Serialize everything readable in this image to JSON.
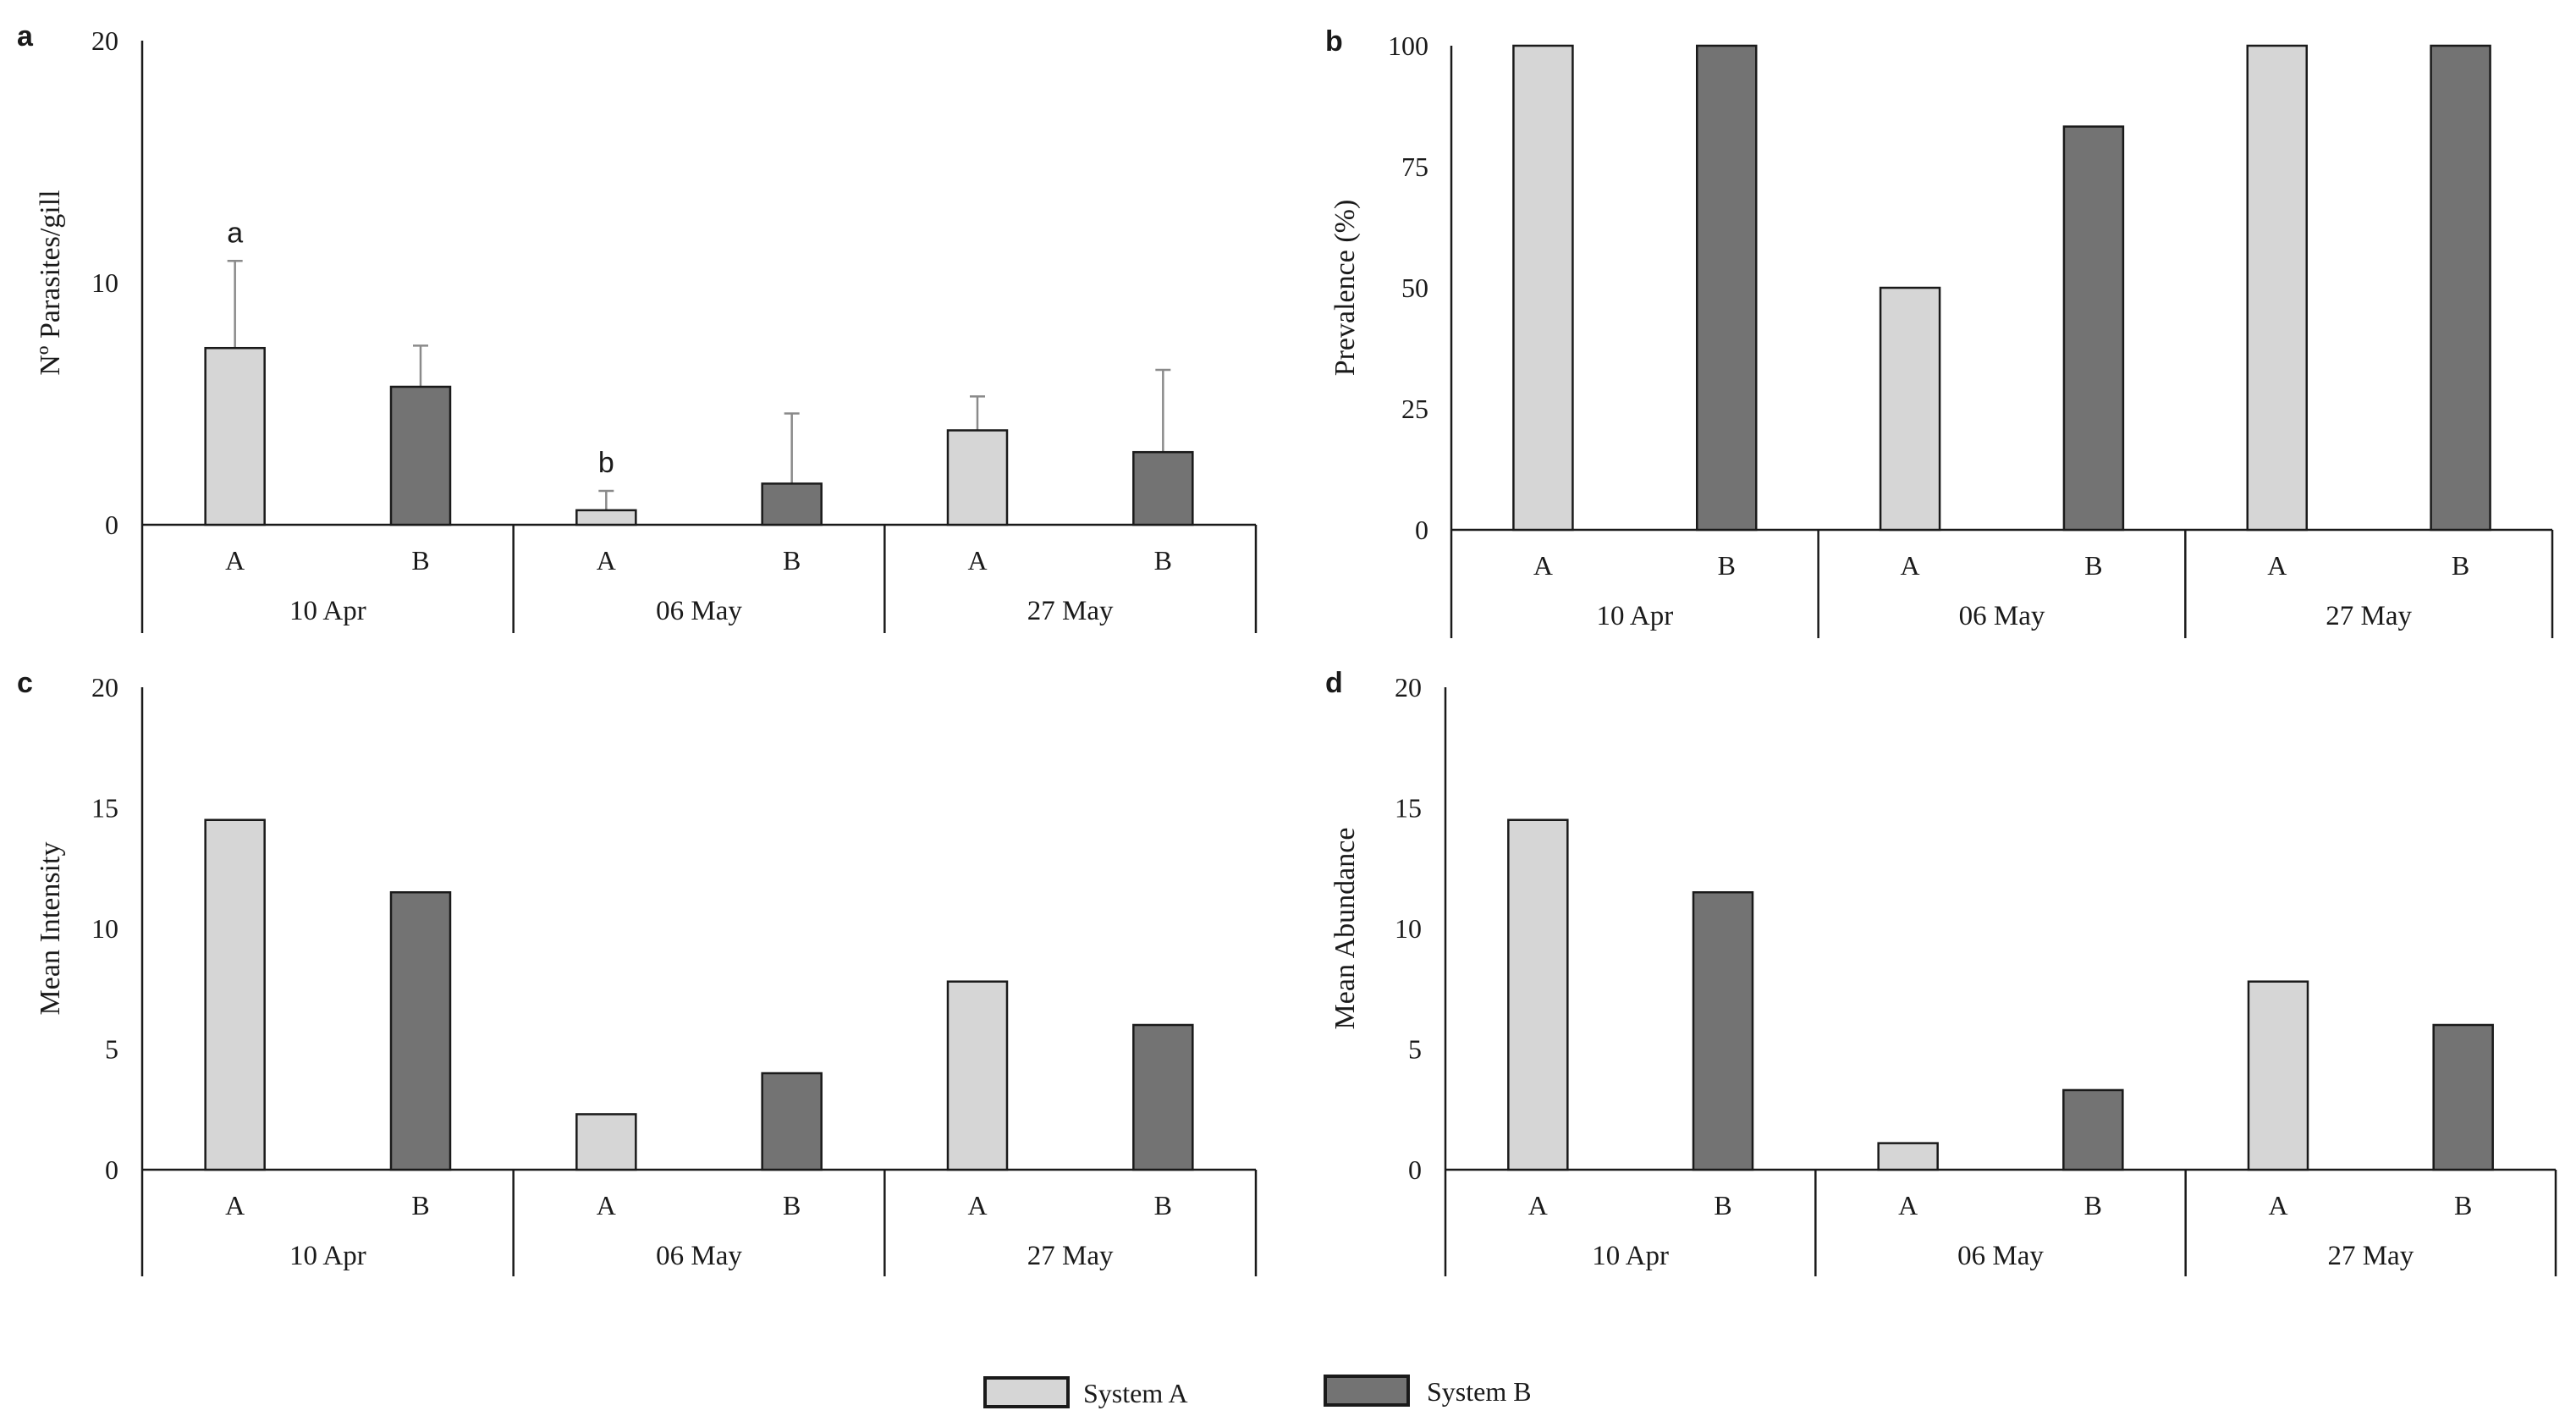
{
  "chart_data": [
    {
      "panel": "a",
      "type": "bar",
      "ylabel": "Nº Parasites/gill",
      "ylim": [
        0,
        20
      ],
      "yticks": [
        0,
        10,
        20
      ],
      "groups": [
        {
          "date": "10 Apr",
          "bars": [
            {
              "system": "A",
              "value": 7.3,
              "error": 3.6,
              "sig": "a"
            },
            {
              "system": "B",
              "value": 5.7,
              "error": 1.7
            }
          ]
        },
        {
          "date": "06 May",
          "bars": [
            {
              "system": "A",
              "value": 0.6,
              "error": 0.8,
              "sig": "b"
            },
            {
              "system": "B",
              "value": 1.7,
              "error": 2.9
            }
          ]
        },
        {
          "date": "27 May",
          "bars": [
            {
              "system": "A",
              "value": 3.9,
              "error": 1.4
            },
            {
              "system": "B",
              "value": 3.0,
              "error": 3.4
            }
          ]
        }
      ]
    },
    {
      "panel": "b",
      "type": "bar",
      "ylabel": "Prevalence (%)",
      "ylim": [
        0,
        100
      ],
      "yticks": [
        0,
        25,
        50,
        75,
        100
      ],
      "groups": [
        {
          "date": "10 Apr",
          "bars": [
            {
              "system": "A",
              "value": 100
            },
            {
              "system": "B",
              "value": 100
            }
          ]
        },
        {
          "date": "06 May",
          "bars": [
            {
              "system": "A",
              "value": 50
            },
            {
              "system": "B",
              "value": 83.3
            }
          ]
        },
        {
          "date": "27 May",
          "bars": [
            {
              "system": "A",
              "value": 100
            },
            {
              "system": "B",
              "value": 100
            }
          ]
        }
      ]
    },
    {
      "panel": "c",
      "type": "bar",
      "ylabel": "Mean Intensity",
      "ylim": [
        0,
        20
      ],
      "yticks": [
        0,
        5,
        10,
        15,
        20
      ],
      "groups": [
        {
          "date": "10 Apr",
          "bars": [
            {
              "system": "A",
              "value": 14.5
            },
            {
              "system": "B",
              "value": 11.5
            }
          ]
        },
        {
          "date": "06 May",
          "bars": [
            {
              "system": "A",
              "value": 2.3
            },
            {
              "system": "B",
              "value": 4.0
            }
          ]
        },
        {
          "date": "27 May",
          "bars": [
            {
              "system": "A",
              "value": 7.8
            },
            {
              "system": "B",
              "value": 6.0
            }
          ]
        }
      ]
    },
    {
      "panel": "d",
      "type": "bar",
      "ylabel": "Mean Abundance",
      "ylim": [
        0,
        20
      ],
      "yticks": [
        0,
        5,
        10,
        15,
        20
      ],
      "groups": [
        {
          "date": "10 Apr",
          "bars": [
            {
              "system": "A",
              "value": 14.5
            },
            {
              "system": "B",
              "value": 11.5
            }
          ]
        },
        {
          "date": "06 May",
          "bars": [
            {
              "system": "A",
              "value": 1.1
            },
            {
              "system": "B",
              "value": 3.3
            }
          ]
        },
        {
          "date": "27 May",
          "bars": [
            {
              "system": "A",
              "value": 7.8
            },
            {
              "system": "B",
              "value": 6.0
            }
          ]
        }
      ]
    }
  ],
  "legend": [
    {
      "label": "System A",
      "color": "#d6d6d6"
    },
    {
      "label": "System B",
      "color": "#737373"
    }
  ],
  "colors": {
    "A": "#d6d6d6",
    "B": "#737373",
    "axis": "#1a1a1a",
    "error": "#8a8a8a"
  }
}
